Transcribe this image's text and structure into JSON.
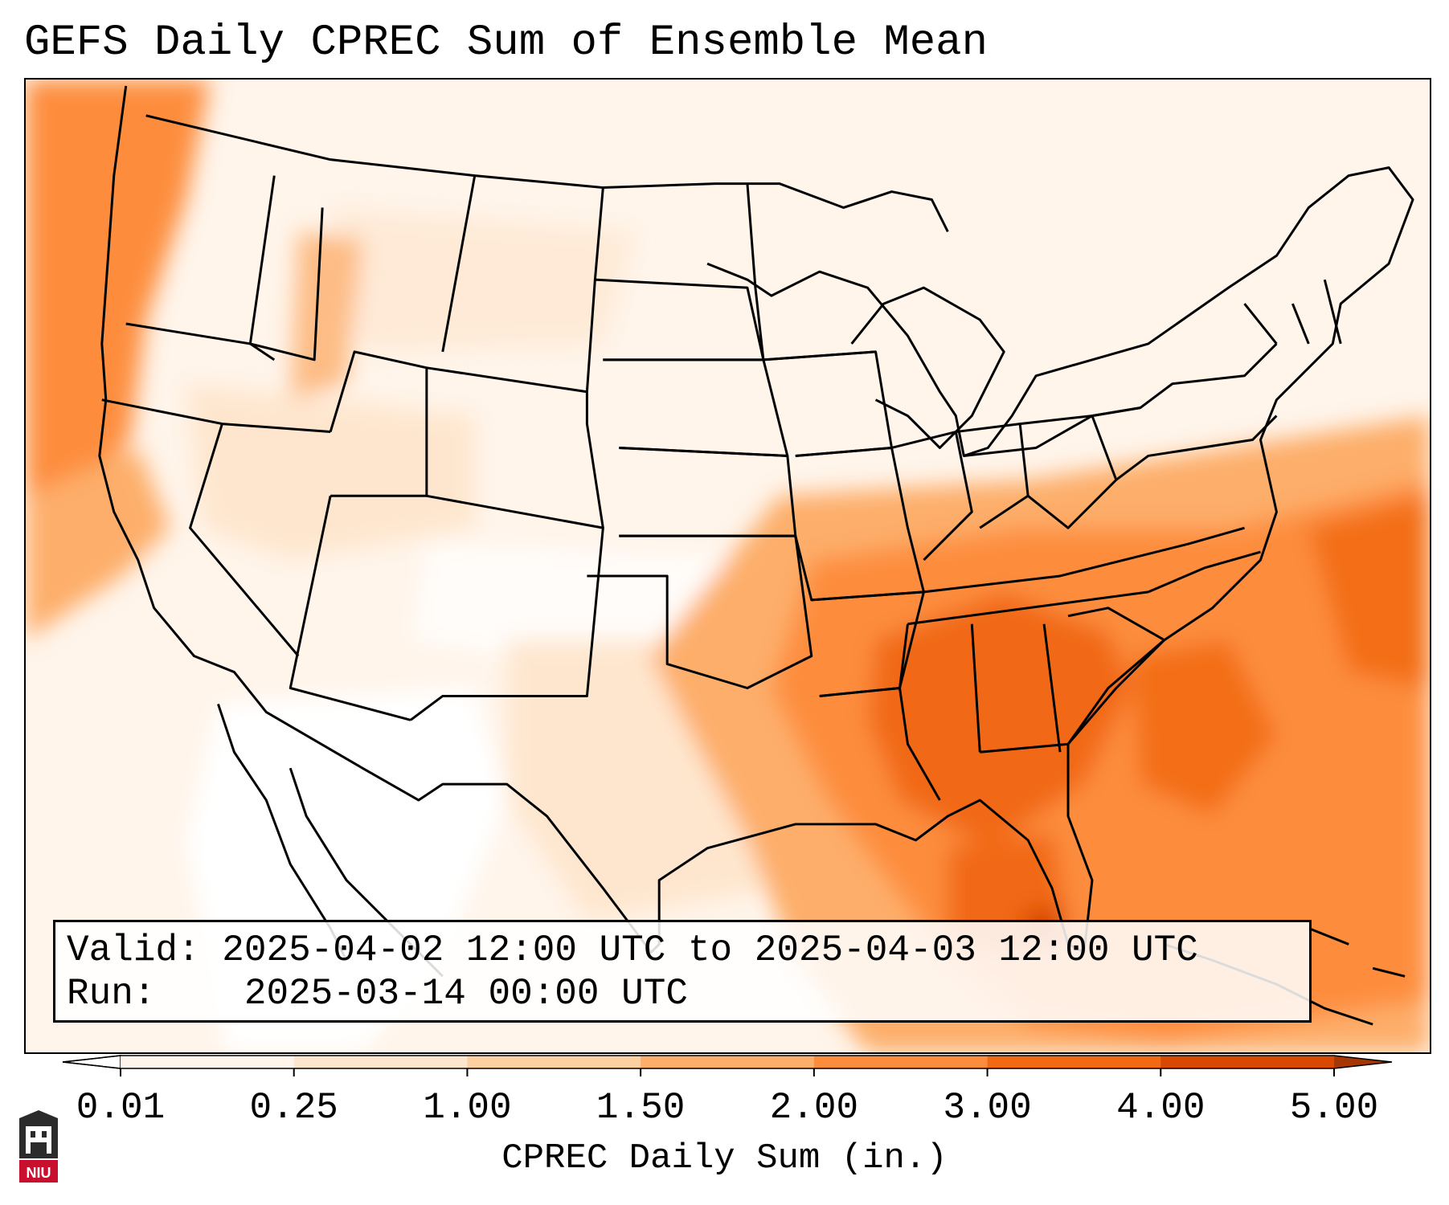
{
  "title": "GEFS Daily CPREC Sum of Ensemble Mean",
  "info": {
    "valid_label": "Valid:",
    "valid_value": "2025-04-02 12:00 UTC to 2025-04-03 12:00 UTC",
    "run_label": "Run:",
    "run_value": "2025-03-14 00:00 UTC"
  },
  "colorbar": {
    "label": "CPREC Daily Sum (in.)",
    "ticks": [
      "0.01",
      "0.25",
      "1.00",
      "1.50",
      "2.00",
      "3.00",
      "4.00",
      "5.00"
    ],
    "colors": [
      "#fff5eb",
      "#fee6ce",
      "#fdd0a2",
      "#fdae6b",
      "#fd8d3c",
      "#f16913",
      "#d94801"
    ],
    "under_color": "#ffffff",
    "over_color": "#a63603"
  },
  "logo": {
    "text": "NIU",
    "color": "#c8102e"
  }
}
